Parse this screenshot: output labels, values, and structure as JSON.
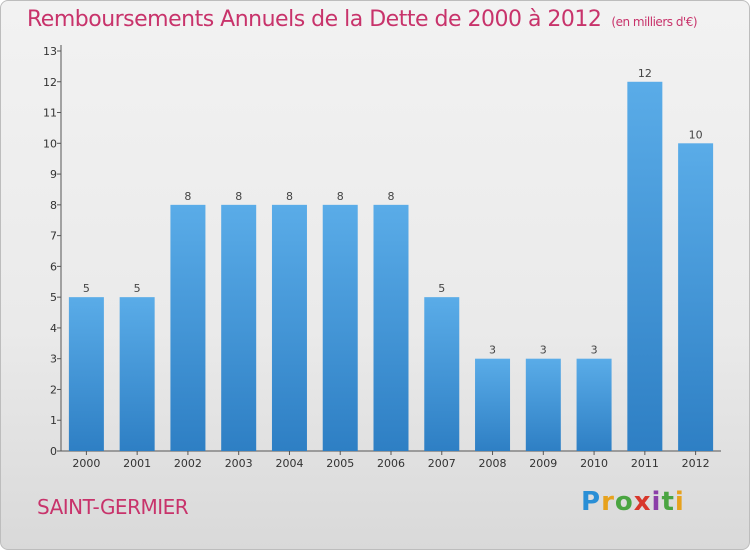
{
  "title": "Remboursements Annuels de la Dette de 2000 à 2012",
  "unit": "(en milliers d'€)",
  "town": "SAINT-GERMIER",
  "logo": {
    "letters": [
      "P",
      "r",
      "o",
      "x",
      "i",
      "t",
      "i"
    ],
    "colors": [
      "#2a8fd6",
      "#e7a21d",
      "#4aa541",
      "#d8372b",
      "#8b3ea8",
      "#4aa541",
      "#e7a21d"
    ]
  },
  "colors": {
    "accent": "#c8336b",
    "bar_top": "#5aace8",
    "bar_bottom": "#2e7fc4"
  },
  "chart_data": {
    "type": "bar",
    "categories": [
      "2000",
      "2001",
      "2002",
      "2003",
      "2004",
      "2005",
      "2006",
      "2007",
      "2008",
      "2009",
      "2010",
      "2011",
      "2012"
    ],
    "values": [
      5,
      5,
      8,
      8,
      8,
      8,
      8,
      5,
      3,
      3,
      3,
      12,
      10
    ],
    "ylim": [
      0,
      13
    ],
    "yticks": [
      0,
      1,
      2,
      3,
      4,
      5,
      6,
      7,
      8,
      9,
      10,
      11,
      12,
      13
    ],
    "grid": false,
    "legend": "none"
  }
}
